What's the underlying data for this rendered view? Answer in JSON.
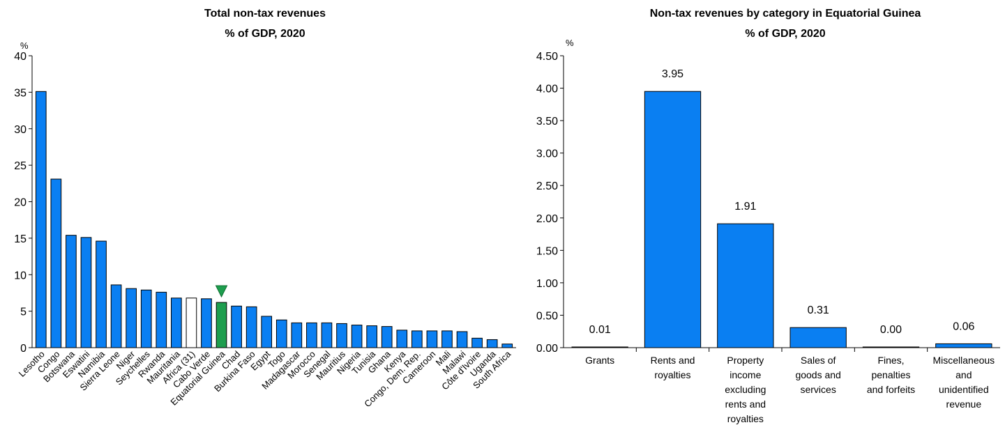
{
  "chart_data": [
    {
      "type": "bar",
      "title": "Total non-tax revenues",
      "subtitle": "% of GDP, 2020",
      "unit_label": "%",
      "ylim": [
        0,
        40
      ],
      "yticks": [
        "0",
        "5",
        "10",
        "15",
        "20",
        "25",
        "30",
        "35",
        "40"
      ],
      "categories": [
        "Lesotho",
        "Congo",
        "Botswana",
        "Eswatini",
        "Namibia",
        "Sierra Leone",
        "Niger",
        "Seychelles",
        "Rwanda",
        "Mauritania",
        "Africa (31)",
        "Cabo Verde",
        "Equatorial Guinea",
        "Chad",
        "Burkina Faso",
        "Egypt",
        "Togo",
        "Madagascar",
        "Morocco",
        "Senegal",
        "Mauritius",
        "Nigeria",
        "Tunisia",
        "Ghana",
        "Kenya",
        "Congo, Dem. Rep.",
        "Cameroon",
        "Mali",
        "Malawi",
        "Côte d'Ivoire",
        "Uganda",
        "South Africa"
      ],
      "values": [
        35.1,
        23.1,
        15.4,
        15.1,
        14.6,
        8.6,
        8.1,
        7.9,
        7.6,
        6.8,
        6.8,
        6.7,
        6.2,
        5.7,
        5.6,
        4.3,
        3.8,
        3.4,
        3.4,
        3.4,
        3.3,
        3.1,
        3.0,
        2.9,
        2.4,
        2.3,
        2.3,
        2.3,
        2.2,
        1.3,
        1.1,
        0.5
      ],
      "colors": {
        "default": "#0a7ff2",
        "average": "#ffffff",
        "highlight": "#1e9e4e",
        "marker": "#1e9e4e"
      },
      "average_category": "Africa (31)",
      "highlight_category": "Equatorial Guinea",
      "grid": false,
      "legend": "none"
    },
    {
      "type": "bar",
      "title": "Non-tax revenues by category in Equatorial Guinea",
      "subtitle": "% of GDP, 2020",
      "unit_label": "%",
      "ylim": [
        0,
        4.5
      ],
      "yticks": [
        "0.00",
        "0.50",
        "1.00",
        "1.50",
        "2.00",
        "2.50",
        "3.00",
        "3.50",
        "4.00",
        "4.50"
      ],
      "categories": [
        [
          "Grants"
        ],
        [
          "Rents and",
          "royalties"
        ],
        [
          "Property",
          "income",
          "excluding",
          "rents and",
          "royalties"
        ],
        [
          "Sales of",
          "goods and",
          "services"
        ],
        [
          "Fines,",
          "penalties",
          "and forfeits"
        ],
        [
          "Miscellaneous",
          "and",
          "unidentified",
          "revenue"
        ]
      ],
      "values": [
        0.01,
        3.95,
        1.91,
        0.31,
        0.0,
        0.06
      ],
      "data_labels": [
        "0.01",
        "3.95",
        "1.91",
        "0.31",
        "0.00",
        "0.06"
      ],
      "colors": {
        "default": "#0a7ff2"
      },
      "grid": false,
      "legend": "none"
    }
  ]
}
